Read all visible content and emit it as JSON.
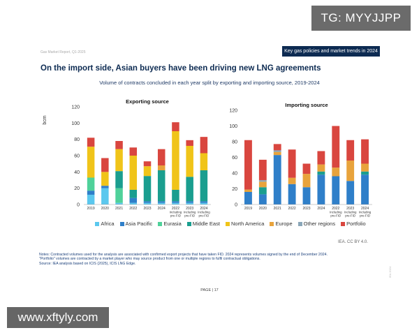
{
  "watermark_top": "TG: MYYJJPP",
  "watermark_bottom": "www.xftyly.com",
  "header": {
    "left": "Gas Market Report, Q1-2025",
    "badge": "Key gas policies and market trends in 2024"
  },
  "title": "On the import side, Asian buyers have been driving new LNG agreements",
  "subtitle": "Volume of contracts concluded in each year split by exporting and importing source, 2019-2024",
  "colors": {
    "Africa": "#5bc8ee",
    "Asia Pacific": "#2f7fc9",
    "Eurasia": "#4fd19a",
    "Middle East": "#1a9e8f",
    "North America": "#f0c419",
    "Europe": "#e8a33c",
    "Other regions": "#8aa6b8",
    "Portfolio": "#d9463f"
  },
  "chart_data": [
    {
      "type": "bar",
      "stacked": true,
      "title": "Exporting source",
      "ylabel": "bcm",
      "ylim": [
        0,
        120
      ],
      "yticks": [
        "0",
        "20",
        "40",
        "60",
        "80",
        "100",
        "120"
      ],
      "categories": [
        "2019",
        "2020",
        "2021",
        "2022",
        "2023",
        "2024",
        "2022",
        "2023",
        "2024"
      ],
      "category_notes": [
        "",
        "",
        "",
        "",
        "",
        "",
        "Including pre-FID",
        "Including pre-FID",
        "Including pre-FID"
      ],
      "series": [
        {
          "name": "Africa",
          "values": [
            12,
            20,
            2,
            2,
            2,
            2,
            2,
            2,
            2
          ]
        },
        {
          "name": "Asia Pacific",
          "values": [
            5,
            3,
            0,
            6,
            2,
            2,
            2,
            2,
            2
          ]
        },
        {
          "name": "Eurasia",
          "values": [
            16,
            0,
            18,
            0,
            0,
            0,
            0,
            0,
            0
          ]
        },
        {
          "name": "Middle East",
          "values": [
            0,
            0,
            21,
            10,
            31,
            38,
            14,
            30,
            38
          ]
        },
        {
          "name": "North America",
          "values": [
            38,
            17,
            27,
            42,
            12,
            0,
            72,
            38,
            21
          ]
        },
        {
          "name": "Europe",
          "values": [
            0,
            0,
            0,
            0,
            0,
            6,
            0,
            0,
            0
          ]
        },
        {
          "name": "Other regions",
          "values": [
            0,
            0,
            0,
            0,
            0,
            0,
            0,
            0,
            0
          ]
        },
        {
          "name": "Portfolio",
          "values": [
            11,
            17,
            10,
            10,
            6,
            20,
            11,
            7,
            20
          ]
        }
      ]
    },
    {
      "type": "bar",
      "stacked": true,
      "title": "Importing source",
      "ylabel": "",
      "ylim": [
        0,
        120
      ],
      "yticks": [
        "0",
        "20",
        "40",
        "60",
        "80",
        "100",
        "120"
      ],
      "categories": [
        "2019",
        "2020",
        "2021",
        "2022",
        "2023",
        "2024",
        "2022",
        "2023",
        "2024"
      ],
      "category_notes": [
        "",
        "",
        "",
        "",
        "",
        "",
        "Including pre-FID",
        "Including pre-FID",
        "Including pre-FID"
      ],
      "series": [
        {
          "name": "Africa",
          "values": [
            0,
            0,
            0,
            0,
            0,
            0,
            0,
            0,
            0
          ]
        },
        {
          "name": "Asia Pacific",
          "values": [
            16,
            13,
            63,
            26,
            22,
            38,
            36,
            30,
            38
          ]
        },
        {
          "name": "Eurasia",
          "values": [
            0,
            0,
            0,
            0,
            0,
            0,
            0,
            0,
            0
          ]
        },
        {
          "name": "Middle East",
          "values": [
            0,
            9,
            0,
            0,
            0,
            4,
            0,
            0,
            4
          ]
        },
        {
          "name": "North America",
          "values": [
            0,
            0,
            0,
            0,
            0,
            0,
            0,
            0,
            0
          ]
        },
        {
          "name": "Europe",
          "values": [
            3,
            7,
            4,
            8,
            17,
            9,
            11,
            26,
            10
          ]
        },
        {
          "name": "Other regions",
          "values": [
            0,
            2,
            2,
            0,
            0,
            0,
            0,
            0,
            0
          ]
        },
        {
          "name": "Portfolio",
          "values": [
            63,
            26,
            8,
            36,
            13,
            17,
            53,
            26,
            31
          ]
        }
      ]
    }
  ],
  "legend": [
    "Africa",
    "Asia Pacific",
    "Eurasia",
    "Middle East",
    "North America",
    "Europe",
    "Other regions",
    "Portfolio"
  ],
  "source_credit": "IEA. CC BY 4.0.",
  "notes": [
    "Notes: Contracted volumes used for the analysis are associated with confirmed export projects that have taken FID. 2024 represents volumes signed by the end of December 2024.",
    "\"Portfolio\" volumes are contracted by a market player who may source product from one or multiple regions to fulfil contractual obligations.",
    "Source: IEA analysis based on ICIS (2025), ICIS LNG Edge."
  ],
  "page_number": "PAGE | 17",
  "side_mark": "IEA 2024"
}
